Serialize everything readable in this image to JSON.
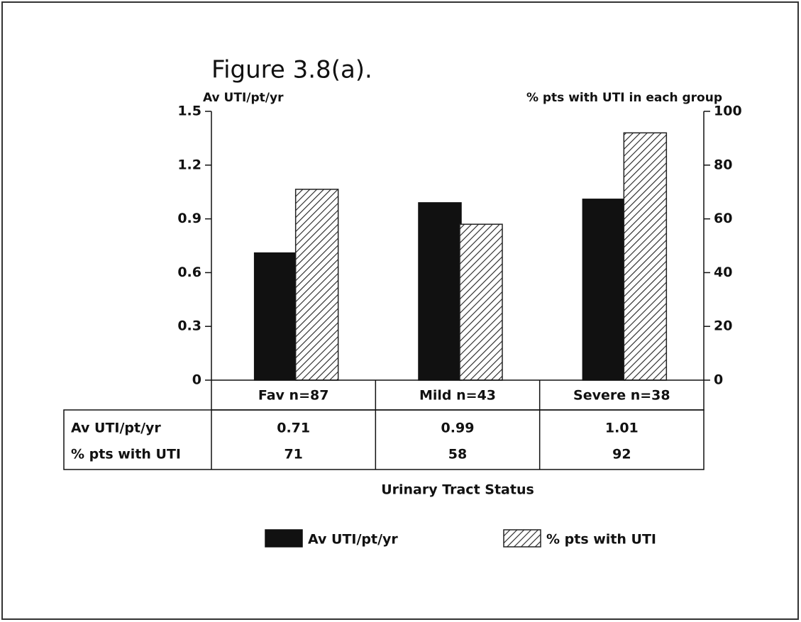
{
  "chart_data": {
    "type": "bar",
    "title": "Figure 3.8(a).",
    "y_label": "Av UTI/pt/yr",
    "y2_label": "% pts with UTI in each group",
    "x_label": "Urinary Tract Status",
    "categories": [
      "Fav n=87",
      "Mild n=43",
      "Severe n=38"
    ],
    "series": [
      {
        "name": "Av UTI/pt/yr",
        "color": "#111111",
        "values": [
          0.71,
          0.99,
          1.01
        ]
      },
      {
        "name": "% pts with UTI",
        "color": "#222222",
        "hatch": true,
        "axis": "y2",
        "values": [
          71,
          58,
          92
        ]
      }
    ],
    "ylim": [
      0,
      1.5
    ],
    "yticks": [
      0,
      0.3,
      0.6,
      0.9,
      1.2,
      1.5
    ],
    "y2lim": [
      0,
      100
    ],
    "y2ticks": [
      0,
      20,
      40,
      60,
      80,
      100
    ],
    "data_table": true
  }
}
